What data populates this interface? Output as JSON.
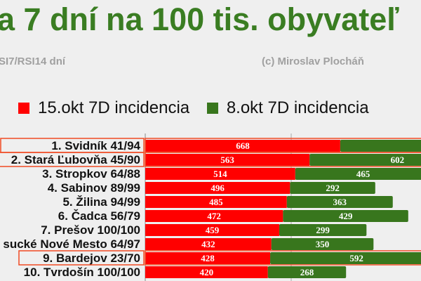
{
  "chart_data": {
    "type": "bar",
    "orientation": "horizontal",
    "stacked": true,
    "title": "a 7 dní  na 100 tis. obyvateľ",
    "subtitle": "SI7/RSI14 dní",
    "credit": "(c) Miroslav Plocháň",
    "legend_position": "top",
    "grid": true,
    "categories": [
      "1. Svidník 41/94",
      "2. Stará Ľubovňa 45/90",
      "3. Stropkov 64/88",
      "4. Sabinov 89/99",
      "5. Žilina 94/99",
      "6. Čadca 56/79",
      "7. Prešov 100/100",
      "sucké Nové Mesto 64/97",
      "9. Bardejov 23/70",
      "10. Tvrdošín 100/100"
    ],
    "highlighted": [
      0,
      1,
      8
    ],
    "series": [
      {
        "name": "15.okt 7D incidencia",
        "color": "#ff0000",
        "values": [
          668,
          563,
          514,
          496,
          485,
          472,
          459,
          432,
          428,
          420
        ]
      },
      {
        "name": "8.okt 7D incidencia",
        "color": "#38761d",
        "values": [
          null,
          602,
          465,
          292,
          363,
          429,
          299,
          350,
          592,
          268
        ]
      }
    ],
    "highlight_color": "#f04a23"
  }
}
